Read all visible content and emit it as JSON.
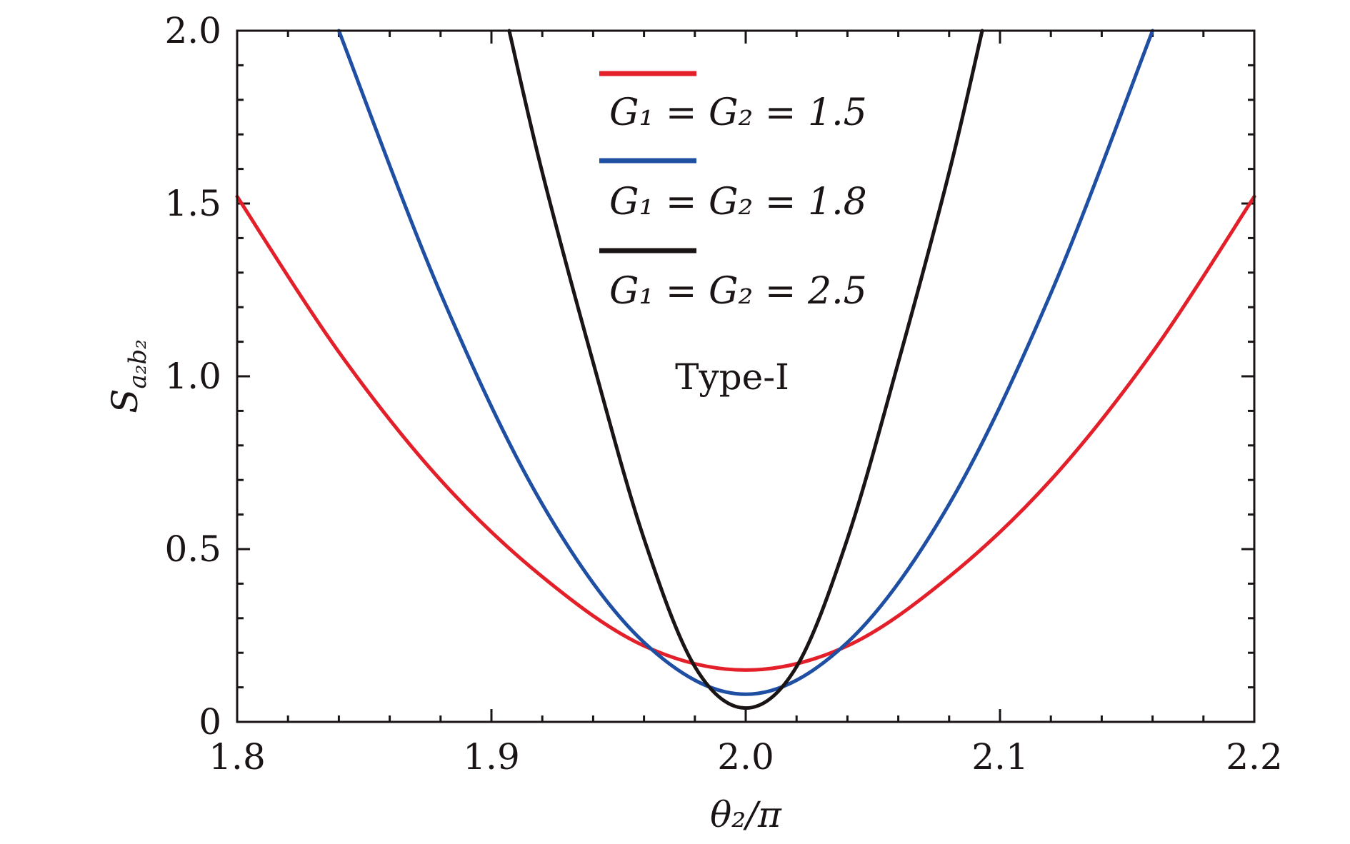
{
  "chart_data": {
    "type": "line",
    "xlabel": "θ₂/π",
    "ylabel": "S_{a₂b₂}",
    "ylabel_main": "S",
    "ylabel_sub": "a₂b₂",
    "xlim": [
      1.8,
      2.2
    ],
    "ylim": [
      0,
      2.0
    ],
    "xticks": [
      {
        "value": 1.8,
        "label": "1.8"
      },
      {
        "value": 1.9,
        "label": "1.9"
      },
      {
        "value": 2.0,
        "label": "2.0"
      },
      {
        "value": 2.1,
        "label": "2.1"
      },
      {
        "value": 2.2,
        "label": "2.2"
      }
    ],
    "yticks": [
      {
        "value": 0,
        "label": "0"
      },
      {
        "value": 0.5,
        "label": "0.5"
      },
      {
        "value": 1.0,
        "label": "1.0"
      },
      {
        "value": 1.5,
        "label": "1.5"
      },
      {
        "value": 2.0,
        "label": "2.0"
      }
    ],
    "x_minor_step": 0.02,
    "y_minor_step": 0.1,
    "grid": false,
    "legend_position": "top-center",
    "annotation": "Type-I",
    "series": [
      {
        "name": "G₁ = G₂ = 1.5",
        "color": "#e3202a",
        "x": [
          1.8,
          1.84,
          1.88,
          1.92,
          1.96,
          2.0,
          2.04,
          2.08,
          2.12,
          2.16,
          2.2
        ],
        "values": [
          1.52,
          1.07,
          0.7,
          0.42,
          0.22,
          0.15,
          0.22,
          0.42,
          0.7,
          1.07,
          1.52
        ]
      },
      {
        "name": "G₁ = G₂ = 1.8",
        "color": "#1f4fa3",
        "x": [
          1.84,
          1.88,
          1.92,
          1.96,
          2.0,
          2.04,
          2.08,
          2.12,
          2.16
        ],
        "values": [
          2.0,
          1.24,
          0.63,
          0.23,
          0.08,
          0.23,
          0.63,
          1.24,
          2.0
        ]
      },
      {
        "name": "G₁ = G₂ = 2.5",
        "color": "#1a1414",
        "x": [
          1.907,
          1.92,
          1.94,
          1.96,
          1.98,
          2.0,
          2.02,
          2.04,
          2.06,
          2.08,
          2.093
        ],
        "values": [
          2.0,
          1.59,
          1.04,
          0.53,
          0.16,
          0.04,
          0.16,
          0.53,
          1.04,
          1.59,
          2.0
        ]
      }
    ]
  }
}
